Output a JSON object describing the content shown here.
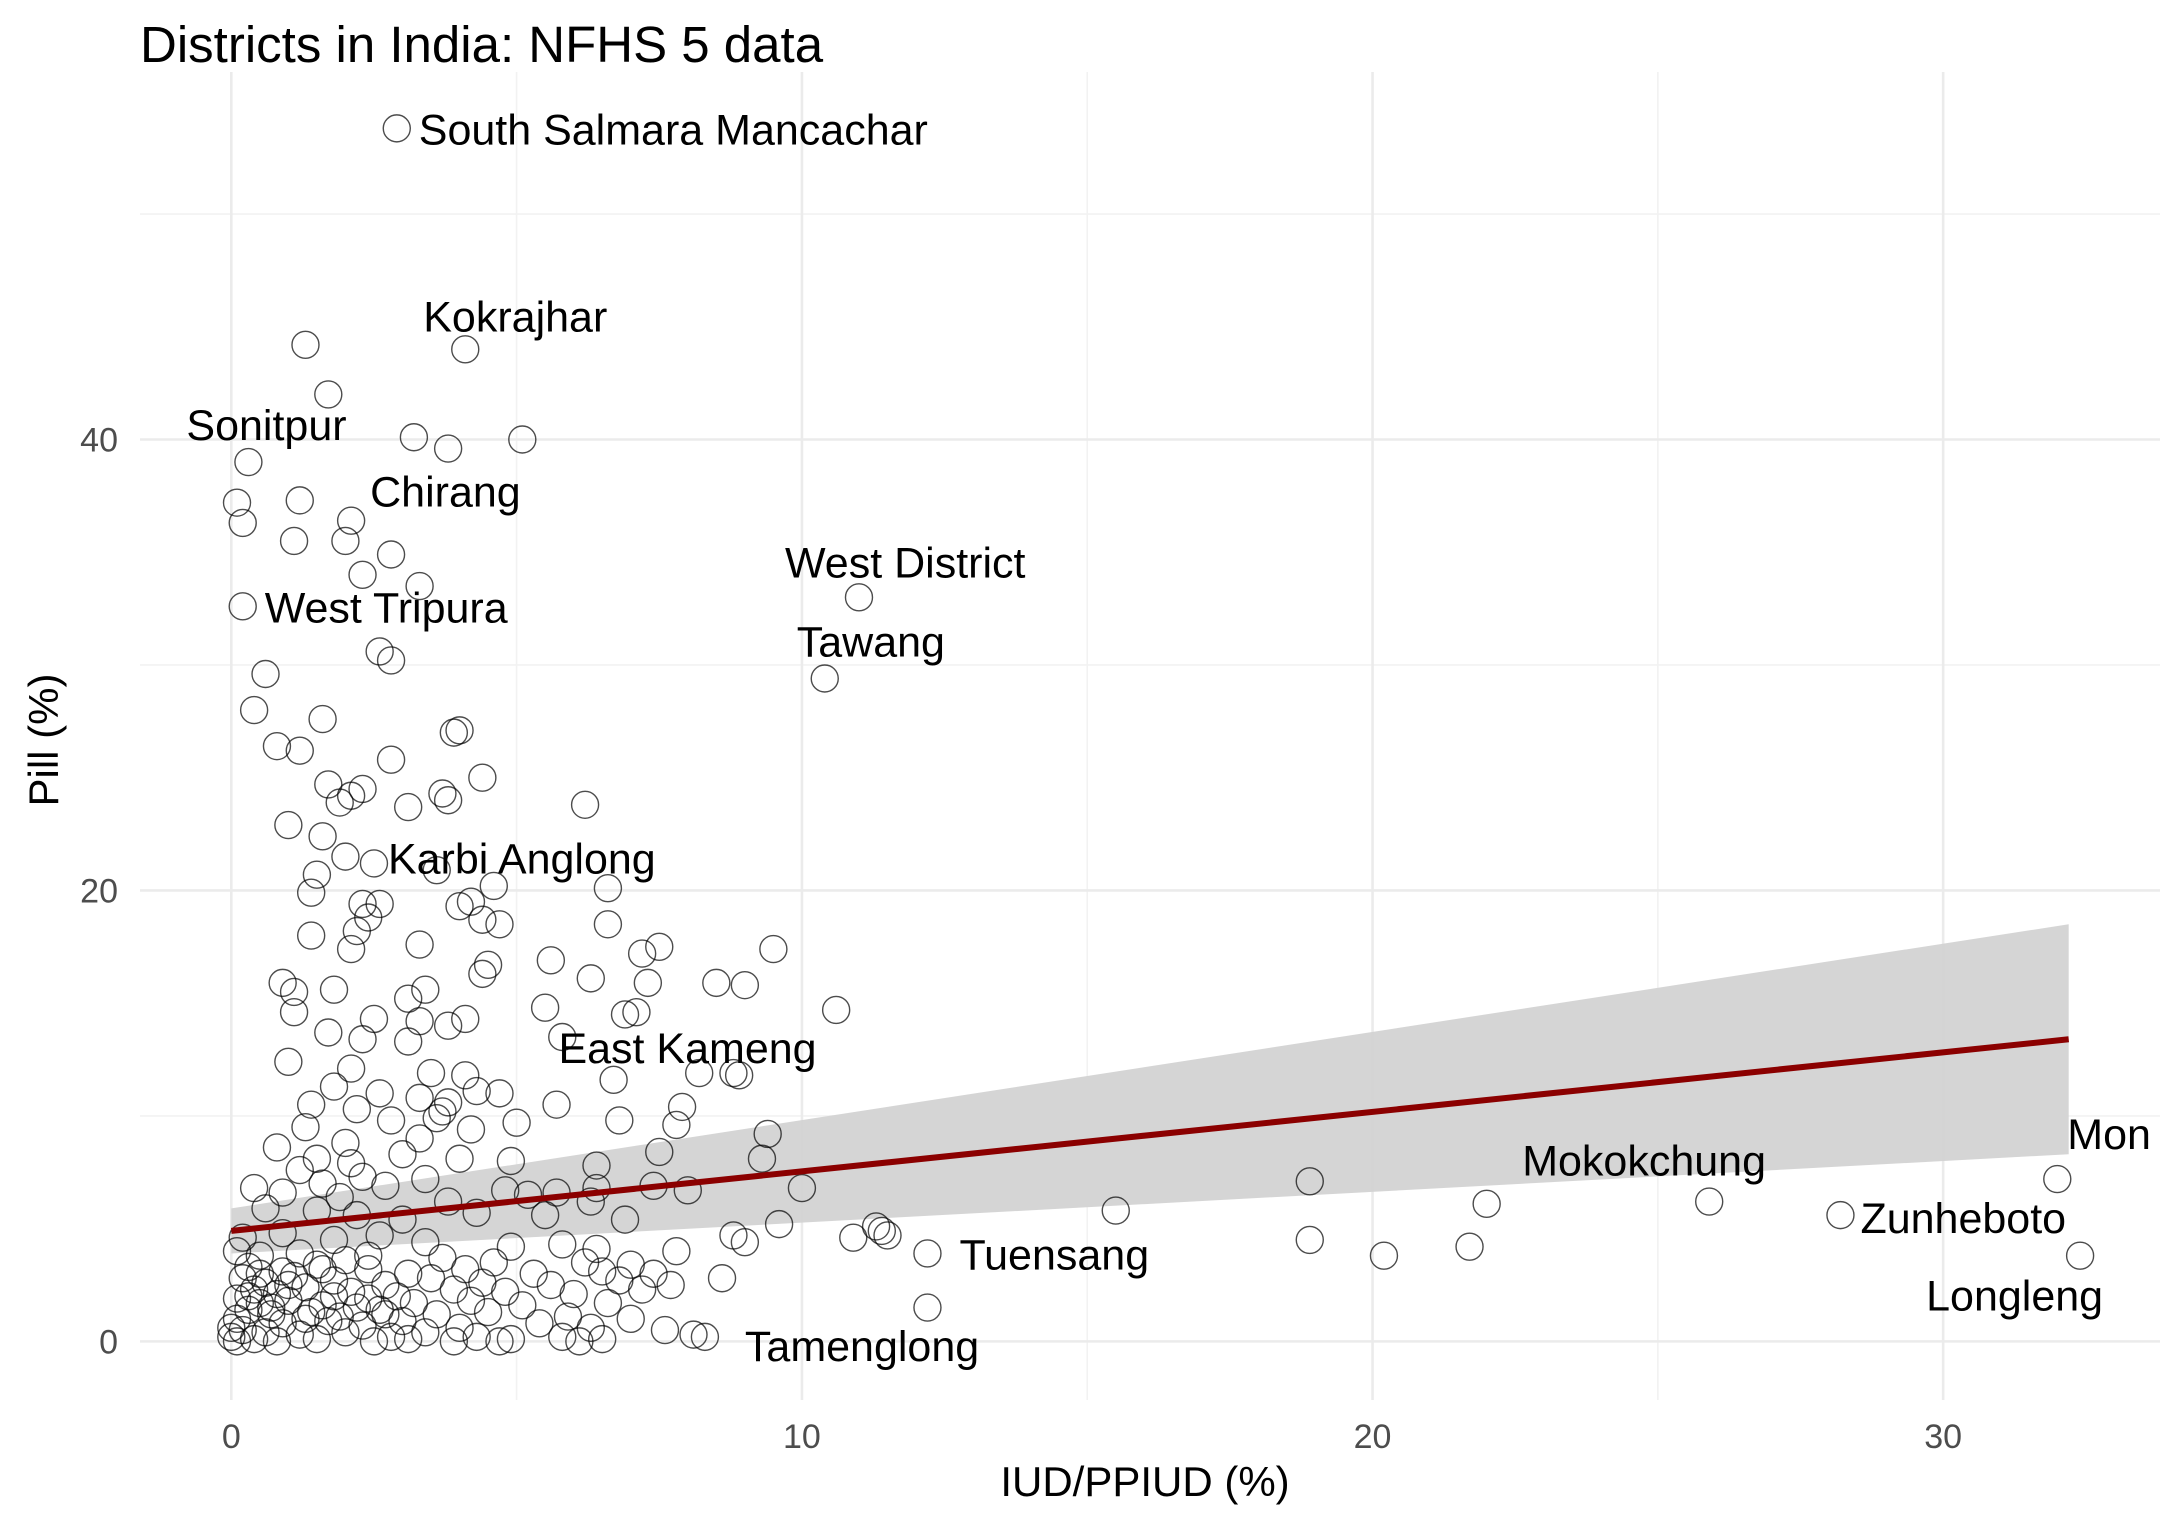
{
  "chart_data": {
    "type": "scatter",
    "title": "Districts in India: NFHS 5 data",
    "xlabel": "IUD/PPIUD (%)",
    "ylabel": "Pill (%)",
    "xlim": [
      -1.6,
      33.8
    ],
    "ylim": [
      -2.6,
      56.3
    ],
    "x_ticks": [
      0,
      10,
      20,
      30
    ],
    "y_ticks": [
      0,
      20,
      40
    ],
    "grid": true,
    "legend": "none",
    "colors": {
      "trend_line": "#8B0000",
      "confidence_band": "#d3d3d3",
      "points": "#000000"
    },
    "trend": {
      "method": "linear",
      "x": [
        0,
        32.2
      ],
      "y": [
        4.9,
        13.4
      ],
      "ci_lower": [
        3.9,
        8.3
      ],
      "ci_upper": [
        5.9,
        18.5
      ]
    },
    "labeled_points": [
      {
        "label": "South Salmara Mancachar",
        "x": 2.9,
        "y": 53.8
      },
      {
        "label": "Kokrajhar",
        "x": 4.1,
        "y": 44.0
      },
      {
        "label": "Sonitpur",
        "x": 0.3,
        "y": 39.0
      },
      {
        "label": "Chirang",
        "x": 3.8,
        "y": 39.6
      },
      {
        "label": "West Tripura",
        "x": 0.2,
        "y": 32.6
      },
      {
        "label": "West District",
        "x": 11.0,
        "y": 33.0
      },
      {
        "label": "Tawang",
        "x": 10.4,
        "y": 29.4
      },
      {
        "label": "Karbi Anglong",
        "x": 2.5,
        "y": 21.2
      },
      {
        "label": "East Kameng",
        "x": 8.8,
        "y": 11.9
      },
      {
        "label": "Mokokchung",
        "x": 25.9,
        "y": 6.2
      },
      {
        "label": "Mon",
        "x": 32.0,
        "y": 7.2
      },
      {
        "label": "Zunheboto",
        "x": 28.2,
        "y": 5.6
      },
      {
        "label": "Tuensang",
        "x": 12.2,
        "y": 3.9
      },
      {
        "label": "Longleng",
        "x": 32.4,
        "y": 3.8
      },
      {
        "label": "Tamenglong",
        "x": 8.3,
        "y": 0.2
      }
    ],
    "points": [
      [
        1.3,
        44.2
      ],
      [
        1.7,
        42.0
      ],
      [
        3.2,
        40.1
      ],
      [
        5.1,
        40.0
      ],
      [
        0.1,
        37.2
      ],
      [
        0.2,
        36.3
      ],
      [
        1.2,
        37.3
      ],
      [
        2.1,
        36.4
      ],
      [
        1.1,
        35.5
      ],
      [
        2.0,
        35.5
      ],
      [
        2.8,
        34.9
      ],
      [
        2.3,
        34.0
      ],
      [
        3.3,
        33.5
      ],
      [
        2.6,
        30.6
      ],
      [
        2.8,
        30.2
      ],
      [
        0.6,
        29.6
      ],
      [
        0.4,
        28.0
      ],
      [
        1.6,
        27.6
      ],
      [
        3.9,
        27.0
      ],
      [
        4.0,
        27.1
      ],
      [
        0.8,
        26.4
      ],
      [
        1.2,
        26.2
      ],
      [
        2.8,
        25.8
      ],
      [
        1.7,
        24.7
      ],
      [
        4.4,
        25.0
      ],
      [
        1.9,
        23.9
      ],
      [
        2.1,
        24.2
      ],
      [
        2.3,
        24.5
      ],
      [
        3.7,
        24.3
      ],
      [
        3.8,
        24.0
      ],
      [
        3.1,
        23.7
      ],
      [
        6.2,
        23.8
      ],
      [
        1.0,
        22.9
      ],
      [
        1.6,
        22.4
      ],
      [
        2.0,
        21.5
      ],
      [
        3.6,
        20.9
      ],
      [
        1.5,
        20.7
      ],
      [
        1.4,
        19.9
      ],
      [
        4.6,
        20.2
      ],
      [
        6.6,
        20.1
      ],
      [
        2.3,
        19.4
      ],
      [
        2.6,
        19.4
      ],
      [
        4.0,
        19.3
      ],
      [
        4.2,
        19.5
      ],
      [
        2.4,
        18.8
      ],
      [
        4.4,
        18.7
      ],
      [
        4.7,
        18.5
      ],
      [
        6.6,
        18.5
      ],
      [
        2.2,
        18.2
      ],
      [
        1.4,
        18.0
      ],
      [
        3.3,
        17.6
      ],
      [
        2.1,
        17.4
      ],
      [
        7.5,
        17.5
      ],
      [
        7.2,
        17.2
      ],
      [
        9.5,
        17.4
      ],
      [
        5.6,
        16.9
      ],
      [
        4.5,
        16.7
      ],
      [
        4.4,
        16.3
      ],
      [
        6.3,
        16.1
      ],
      [
        7.3,
        15.9
      ],
      [
        8.5,
        15.9
      ],
      [
        9.0,
        15.8
      ],
      [
        0.9,
        15.9
      ],
      [
        1.1,
        15.5
      ],
      [
        1.8,
        15.6
      ],
      [
        3.4,
        15.6
      ],
      [
        3.1,
        15.2
      ],
      [
        1.1,
        14.6
      ],
      [
        5.5,
        14.8
      ],
      [
        6.9,
        14.5
      ],
      [
        7.1,
        14.6
      ],
      [
        10.6,
        14.7
      ],
      [
        2.5,
        14.3
      ],
      [
        3.3,
        14.2
      ],
      [
        3.8,
        14.0
      ],
      [
        4.1,
        14.3
      ],
      [
        1.7,
        13.7
      ],
      [
        2.3,
        13.4
      ],
      [
        3.1,
        13.3
      ],
      [
        5.8,
        13.5
      ],
      [
        1.0,
        12.4
      ],
      [
        2.1,
        12.1
      ],
      [
        3.5,
        11.9
      ],
      [
        6.7,
        11.6
      ],
      [
        8.2,
        11.9
      ],
      [
        8.9,
        11.8
      ],
      [
        4.1,
        11.8
      ],
      [
        1.8,
        11.3
      ],
      [
        2.6,
        11.0
      ],
      [
        3.3,
        10.8
      ],
      [
        4.3,
        11.1
      ],
      [
        4.7,
        11.0
      ],
      [
        1.4,
        10.5
      ],
      [
        2.2,
        10.3
      ],
      [
        3.7,
        10.2
      ],
      [
        3.8,
        10.6
      ],
      [
        5.7,
        10.5
      ],
      [
        7.9,
        10.4
      ],
      [
        2.8,
        9.8
      ],
      [
        3.6,
        9.9
      ],
      [
        1.3,
        9.5
      ],
      [
        4.2,
        9.4
      ],
      [
        5.0,
        9.7
      ],
      [
        6.8,
        9.8
      ],
      [
        7.8,
        9.6
      ],
      [
        9.4,
        9.2
      ],
      [
        3.3,
        9.0
      ],
      [
        2.0,
        8.8
      ],
      [
        0.8,
        8.6
      ],
      [
        1.5,
        8.1
      ],
      [
        3.0,
        8.3
      ],
      [
        4.0,
        8.1
      ],
      [
        4.9,
        8.0
      ],
      [
        7.5,
        8.4
      ],
      [
        9.3,
        8.1
      ],
      [
        2.1,
        7.9
      ],
      [
        1.2,
        7.6
      ],
      [
        2.3,
        7.3
      ],
      [
        3.4,
        7.2
      ],
      [
        6.4,
        7.8
      ],
      [
        1.6,
        7.0
      ],
      [
        2.7,
        6.9
      ],
      [
        4.8,
        6.7
      ],
      [
        5.7,
        6.6
      ],
      [
        6.4,
        6.8
      ],
      [
        7.4,
        6.9
      ],
      [
        8.0,
        6.7
      ],
      [
        10.0,
        6.8
      ],
      [
        0.4,
        6.8
      ],
      [
        0.9,
        6.6
      ],
      [
        1.9,
        6.4
      ],
      [
        3.8,
        6.2
      ],
      [
        5.2,
        6.5
      ],
      [
        6.3,
        6.2
      ],
      [
        15.5,
        5.8
      ],
      [
        18.9,
        7.1
      ],
      [
        22.0,
        6.1
      ],
      [
        0.6,
        5.9
      ],
      [
        1.5,
        5.8
      ],
      [
        2.2,
        5.6
      ],
      [
        3.0,
        5.4
      ],
      [
        4.3,
        5.7
      ],
      [
        5.5,
        5.6
      ],
      [
        6.9,
        5.4
      ],
      [
        11.3,
        5.1
      ],
      [
        11.4,
        4.9
      ],
      [
        9.6,
        5.2
      ],
      [
        8.8,
        4.7
      ],
      [
        10.9,
        4.6
      ],
      [
        11.5,
        4.7
      ],
      [
        0.2,
        4.6
      ],
      [
        0.9,
        4.8
      ],
      [
        1.8,
        4.5
      ],
      [
        2.6,
        4.7
      ],
      [
        3.4,
        4.4
      ],
      [
        4.9,
        4.2
      ],
      [
        5.8,
        4.3
      ],
      [
        6.4,
        4.1
      ],
      [
        7.8,
        4.0
      ],
      [
        9.0,
        4.4
      ],
      [
        18.9,
        4.5
      ],
      [
        20.2,
        3.8
      ],
      [
        21.7,
        4.2
      ],
      [
        0.1,
        4.0
      ],
      [
        0.5,
        3.8
      ],
      [
        1.2,
        3.9
      ],
      [
        2.0,
        3.6
      ],
      [
        3.7,
        3.7
      ],
      [
        4.6,
        3.5
      ],
      [
        6.2,
        3.5
      ],
      [
        7.0,
        3.4
      ],
      [
        0.3,
        3.3
      ],
      [
        0.9,
        3.1
      ],
      [
        1.5,
        3.4
      ],
      [
        2.4,
        3.2
      ],
      [
        3.1,
        3.0
      ],
      [
        4.1,
        3.2
      ],
      [
        5.3,
        3.0
      ],
      [
        6.5,
        3.1
      ],
      [
        7.4,
        3.0
      ],
      [
        8.6,
        2.8
      ],
      [
        0.2,
        2.8
      ],
      [
        0.6,
        2.6
      ],
      [
        1.1,
        2.9
      ],
      [
        1.8,
        2.7
      ],
      [
        2.7,
        2.5
      ],
      [
        3.5,
        2.8
      ],
      [
        4.4,
        2.6
      ],
      [
        5.6,
        2.5
      ],
      [
        6.8,
        2.7
      ],
      [
        7.7,
        2.5
      ],
      [
        0.4,
        2.3
      ],
      [
        0.8,
        2.1
      ],
      [
        1.3,
        2.4
      ],
      [
        2.1,
        2.2
      ],
      [
        2.9,
        2.0
      ],
      [
        3.9,
        2.3
      ],
      [
        4.8,
        2.2
      ],
      [
        6.0,
        2.1
      ],
      [
        7.2,
        2.3
      ],
      [
        0.1,
        1.9
      ],
      [
        0.5,
        1.7
      ],
      [
        1.0,
        1.8
      ],
      [
        1.6,
        1.6
      ],
      [
        2.4,
        1.9
      ],
      [
        3.2,
        1.7
      ],
      [
        4.2,
        1.8
      ],
      [
        5.1,
        1.6
      ],
      [
        6.6,
        1.7
      ],
      [
        12.2,
        1.5
      ],
      [
        0.3,
        1.4
      ],
      [
        0.7,
        1.2
      ],
      [
        1.4,
        1.3
      ],
      [
        1.9,
        1.1
      ],
      [
        2.6,
        1.4
      ],
      [
        3.6,
        1.2
      ],
      [
        4.5,
        1.3
      ],
      [
        5.9,
        1.1
      ],
      [
        7.0,
        1.0
      ],
      [
        0.1,
        1.0
      ],
      [
        0.9,
        0.8
      ],
      [
        1.7,
        0.9
      ],
      [
        2.3,
        0.7
      ],
      [
        3.0,
        0.9
      ],
      [
        4.0,
        0.6
      ],
      [
        5.4,
        0.8
      ],
      [
        6.3,
        0.6
      ],
      [
        7.6,
        0.5
      ],
      [
        0.2,
        0.5
      ],
      [
        0.6,
        0.4
      ],
      [
        1.2,
        0.3
      ],
      [
        2.0,
        0.4
      ],
      [
        2.8,
        0.2
      ],
      [
        3.4,
        0.4
      ],
      [
        4.3,
        0.2
      ],
      [
        4.9,
        0.1
      ],
      [
        5.8,
        0.2
      ],
      [
        6.5,
        0.1
      ],
      [
        8.1,
        0.3
      ],
      [
        0.0,
        0.2
      ],
      [
        0.4,
        0.1
      ],
      [
        0.8,
        0.0
      ],
      [
        1.5,
        0.1
      ],
      [
        2.5,
        0.0
      ],
      [
        3.1,
        0.1
      ],
      [
        3.9,
        0.0
      ],
      [
        4.7,
        0.0
      ],
      [
        6.1,
        0.0
      ],
      [
        0.1,
        0.0
      ],
      [
        0.0,
        0.6
      ],
      [
        0.3,
        2.0
      ],
      [
        0.5,
        3.0
      ],
      [
        0.7,
        1.5
      ],
      [
        1.0,
        2.5
      ],
      [
        1.3,
        1.0
      ],
      [
        1.6,
        3.2
      ],
      [
        1.8,
        2.0
      ],
      [
        2.2,
        1.5
      ],
      [
        2.4,
        3.8
      ],
      [
        2.7,
        1.2
      ]
    ]
  }
}
